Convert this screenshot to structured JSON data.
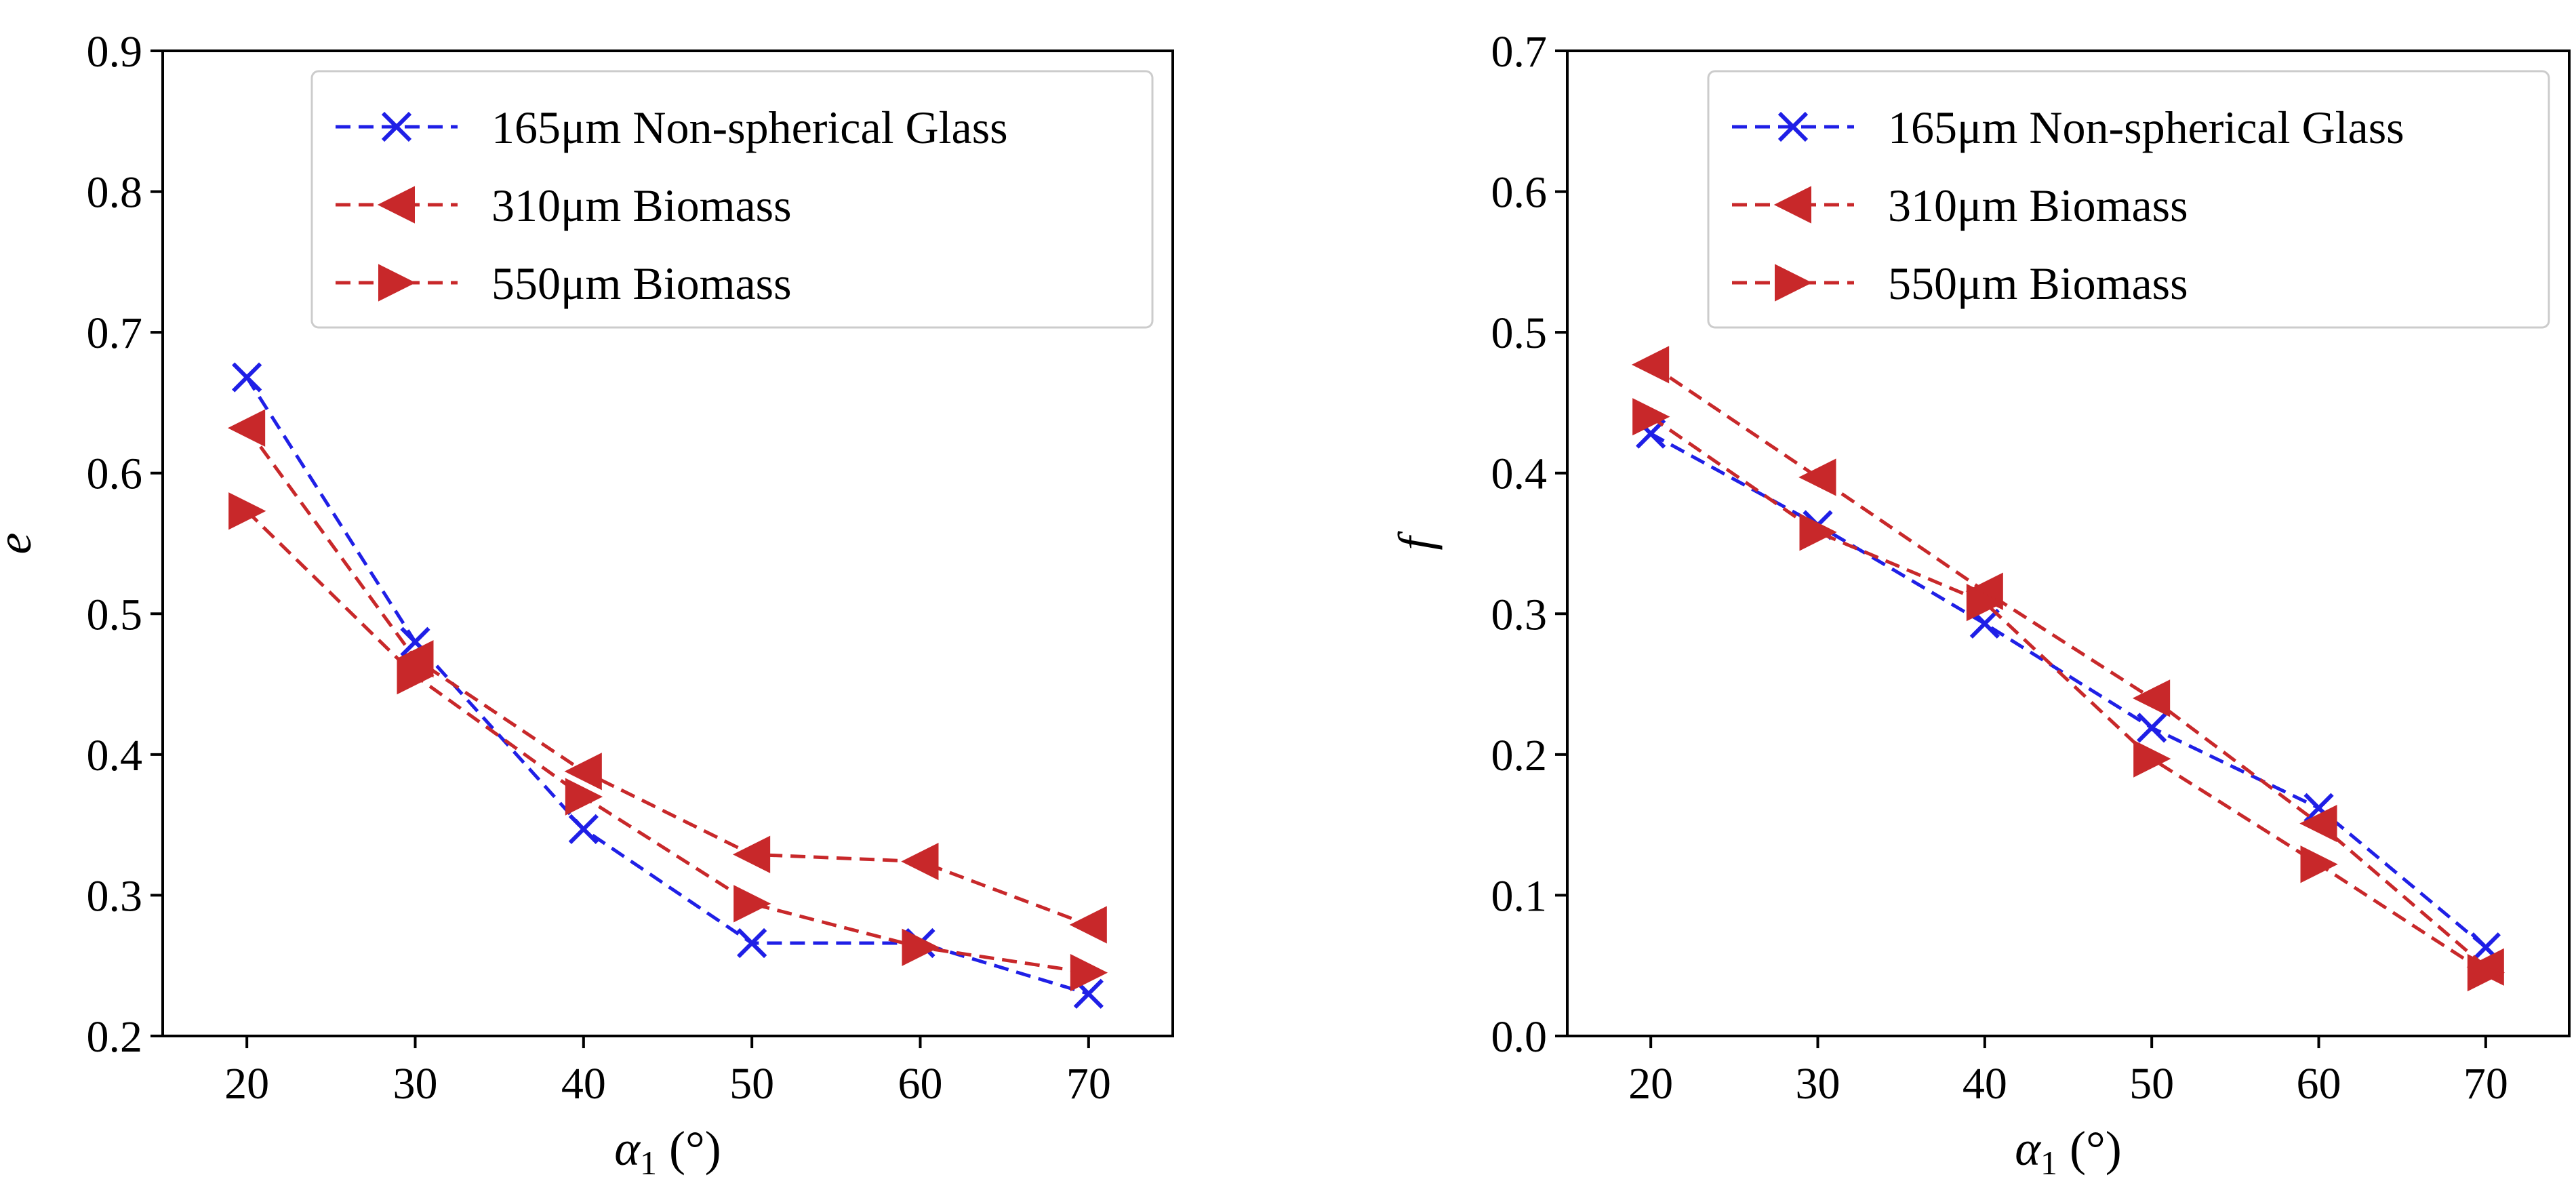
{
  "colors": {
    "blue": "#1f1fe6",
    "red": "#c8282a",
    "axis": "#000000",
    "legend_border": "#cccccc"
  },
  "chart_data": [
    {
      "type": "line",
      "ylabel": "e",
      "xlabel": {
        "main": "α",
        "sub": "1",
        "unit": " (°)"
      },
      "x": [
        20,
        30,
        40,
        50,
        60,
        70
      ],
      "xlim": [
        15,
        75
      ],
      "xticks": [
        "20",
        "30",
        "40",
        "50",
        "60",
        "70"
      ],
      "ylim": [
        0.2,
        0.9
      ],
      "yticks": [
        "0.2",
        "0.3",
        "0.4",
        "0.5",
        "0.6",
        "0.7",
        "0.8",
        "0.9"
      ],
      "legend_position": "top-right",
      "grid": false,
      "series": [
        {
          "name": "165μm Non-spherical Glass",
          "marker": "x",
          "color": "#1f1fe6",
          "values": [
            0.668,
            0.48,
            0.347,
            0.266,
            0.266,
            0.23
          ]
        },
        {
          "name": "310μm Biomass",
          "marker": "triangle-left",
          "color": "#c8282a",
          "values": [
            0.632,
            0.468,
            0.388,
            0.329,
            0.324,
            0.279
          ]
        },
        {
          "name": "550μm Biomass",
          "marker": "triangle-right",
          "color": "#c8282a",
          "values": [
            0.573,
            0.456,
            0.37,
            0.294,
            0.263,
            0.245
          ]
        }
      ]
    },
    {
      "type": "line",
      "ylabel": "f",
      "xlabel": {
        "main": "α",
        "sub": "1",
        "unit": " (°)"
      },
      "x": [
        20,
        30,
        40,
        50,
        60,
        70
      ],
      "xlim": [
        15,
        75
      ],
      "xticks": [
        "20",
        "30",
        "40",
        "50",
        "60",
        "70"
      ],
      "ylim": [
        0.0,
        0.7
      ],
      "yticks": [
        "0.0",
        "0.1",
        "0.2",
        "0.3",
        "0.4",
        "0.5",
        "0.6",
        "0.7"
      ],
      "legend_position": "top-right",
      "grid": false,
      "series": [
        {
          "name": "165μm Non-spherical Glass",
          "marker": "x",
          "color": "#1f1fe6",
          "values": [
            0.428,
            0.363,
            0.293,
            0.219,
            0.162,
            0.063
          ]
        },
        {
          "name": "310μm Biomass",
          "marker": "triangle-left",
          "color": "#c8282a",
          "values": [
            0.477,
            0.397,
            0.316,
            0.24,
            0.151,
            0.049
          ]
        },
        {
          "name": "550μm Biomass",
          "marker": "triangle-right",
          "color": "#c8282a",
          "values": [
            0.44,
            0.358,
            0.308,
            0.197,
            0.122,
            0.045
          ]
        }
      ]
    }
  ]
}
